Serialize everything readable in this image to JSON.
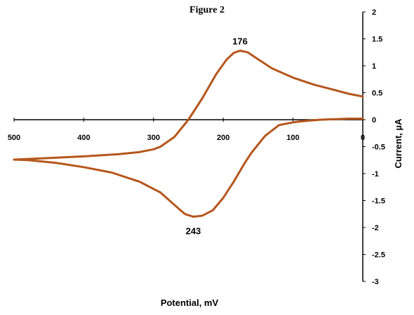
{
  "chart_data": {
    "type": "line",
    "title": "Figure 2",
    "xlabel": "Potential, mV",
    "ylabel": "Current, µA",
    "xlim": [
      500,
      0
    ],
    "ylim": [
      -3,
      2
    ],
    "x_ticks": [
      "500",
      "400",
      "300",
      "200",
      "100",
      "0"
    ],
    "y_ticks": [
      "2",
      "1.5",
      "1",
      "0.5",
      "0",
      "-0.5",
      "-1",
      "-1.5",
      "-2",
      "-2.5",
      "-3"
    ],
    "grid": false,
    "legend": "none",
    "line_color": "#B5561C",
    "series": [
      {
        "x": [
          0,
          20,
          40,
          60,
          80,
          100,
          120,
          140,
          160,
          170,
          176,
          185,
          200,
          215,
          230,
          243,
          255,
          270,
          290,
          320,
          360,
          400,
          440,
          480,
          500
        ],
        "y": [
          0.02,
          0.02,
          0.01,
          0.0,
          -0.02,
          -0.05,
          -0.1,
          -0.3,
          -0.62,
          -0.82,
          -0.95,
          -1.15,
          -1.45,
          -1.68,
          -1.78,
          -1.8,
          -1.75,
          -1.58,
          -1.35,
          -1.15,
          -0.98,
          -0.88,
          -0.8,
          -0.75,
          -0.74
        ]
      },
      {
        "x": [
          500,
          450,
          400,
          350,
          320,
          300,
          290,
          270,
          250,
          230,
          210,
          195,
          185,
          176,
          165,
          150,
          130,
          100,
          70,
          40,
          20,
          0
        ],
        "y": [
          -0.74,
          -0.71,
          -0.68,
          -0.64,
          -0.6,
          -0.55,
          -0.5,
          -0.32,
          0.0,
          0.4,
          0.85,
          1.12,
          1.24,
          1.28,
          1.25,
          1.12,
          0.95,
          0.78,
          0.65,
          0.55,
          0.48,
          0.43
        ]
      }
    ],
    "annotations": [
      {
        "text": "176",
        "x": 176,
        "y": 1.28
      },
      {
        "text": "243",
        "x": 243,
        "y": -1.8
      }
    ]
  }
}
